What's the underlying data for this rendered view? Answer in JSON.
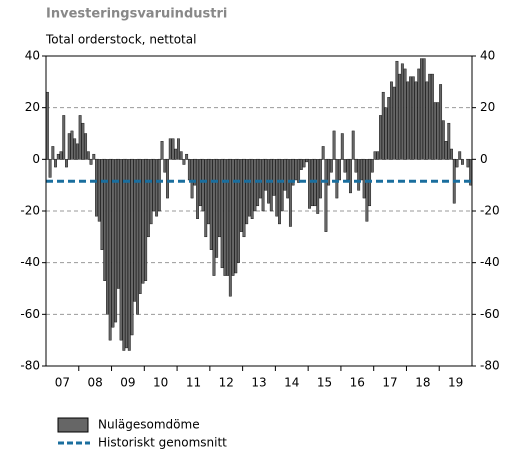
{
  "chart_data": {
    "type": "bar",
    "title": "Investeringsvaruindustri",
    "subtitle": "Total orderstock, nettotal",
    "categories": [
      null,
      null,
      null,
      null,
      null,
      "07",
      null,
      null,
      null,
      null,
      null,
      null,
      null,
      null,
      null,
      null,
      null,
      "08",
      null,
      null,
      null,
      null,
      null,
      null,
      null,
      null,
      null,
      null,
      null,
      "09",
      null,
      null,
      null,
      null,
      null,
      null,
      null,
      null,
      null,
      null,
      null,
      "10",
      null,
      null,
      null,
      null,
      null,
      null,
      null,
      null,
      null,
      null,
      null,
      "11",
      null,
      null,
      null,
      null,
      null,
      null,
      null,
      null,
      null,
      null,
      null,
      "12",
      null,
      null,
      null,
      null,
      null,
      null,
      null,
      null,
      null,
      null,
      null,
      "13",
      null,
      null,
      null,
      null,
      null,
      null,
      null,
      null,
      null,
      null,
      null,
      "14",
      null,
      null,
      null,
      null,
      null,
      null,
      null,
      null,
      null,
      null,
      null,
      "15",
      null,
      null,
      null,
      null,
      null,
      null,
      null,
      null,
      null,
      null,
      null,
      "16",
      null,
      null,
      null,
      null,
      null,
      null,
      null,
      null,
      null,
      null,
      null,
      "17",
      null,
      null,
      null,
      null,
      null,
      null,
      null,
      null,
      null,
      null,
      null,
      "18",
      null,
      null,
      null,
      null,
      null,
      null,
      null,
      null,
      null,
      null,
      null,
      "19",
      null,
      null,
      null,
      null,
      null,
      null
    ],
    "series": [
      {
        "name": "Nulägesomdöme",
        "color": "#666666",
        "values": [
          26,
          -7,
          5,
          -3,
          2,
          3,
          17,
          -3,
          10,
          11,
          8,
          6,
          17,
          14,
          10,
          3,
          -2,
          2,
          -22,
          -24,
          -35,
          -47,
          -60,
          -70,
          -65,
          -63,
          -50,
          -70,
          -74,
          -73,
          -74,
          -68,
          -55,
          -60,
          -52,
          -48,
          -47,
          -30,
          -25,
          -20,
          -22,
          -20,
          7,
          -5,
          -15,
          8,
          8,
          4,
          8,
          3,
          -2,
          2,
          -8,
          -15,
          -10,
          -23,
          -18,
          -20,
          -30,
          -25,
          -35,
          -45,
          -38,
          -30,
          -42,
          -45,
          -45,
          -53,
          -45,
          -44,
          -40,
          -28,
          -30,
          -25,
          -22,
          -23,
          -20,
          -18,
          -15,
          -20,
          -12,
          -17,
          -20,
          -14,
          -22,
          -25,
          -20,
          -12,
          -15,
          -26,
          -10,
          -8,
          -9,
          -4,
          -3,
          -1,
          -19,
          -18,
          -18,
          -21,
          -15,
          5,
          -28,
          -10,
          -5,
          11,
          -15,
          -8,
          10,
          -5,
          -8,
          -13,
          11,
          -5,
          -12,
          -8,
          -15,
          -24,
          -18,
          -5,
          3,
          3,
          17,
          26,
          20,
          24,
          30,
          28,
          38,
          33,
          37,
          35,
          30,
          32,
          32,
          30,
          35,
          39,
          39,
          30,
          33,
          33,
          22,
          22,
          29,
          15,
          7,
          14,
          4,
          -17,
          -3,
          3,
          -2,
          0,
          -3,
          -10
        ]
      }
    ],
    "reference_line": {
      "name": "Historiskt genomsnitt",
      "color": "#1a6e9e",
      "value": -8.5
    },
    "ylim": [
      -80,
      40
    ],
    "yticks": [
      -80,
      -60,
      -40,
      -20,
      0,
      20,
      40
    ],
    "y2lim": [
      -80,
      40
    ],
    "y2ticks": [
      -80,
      -60,
      -40,
      -20,
      0,
      20,
      40
    ],
    "grid": true
  }
}
